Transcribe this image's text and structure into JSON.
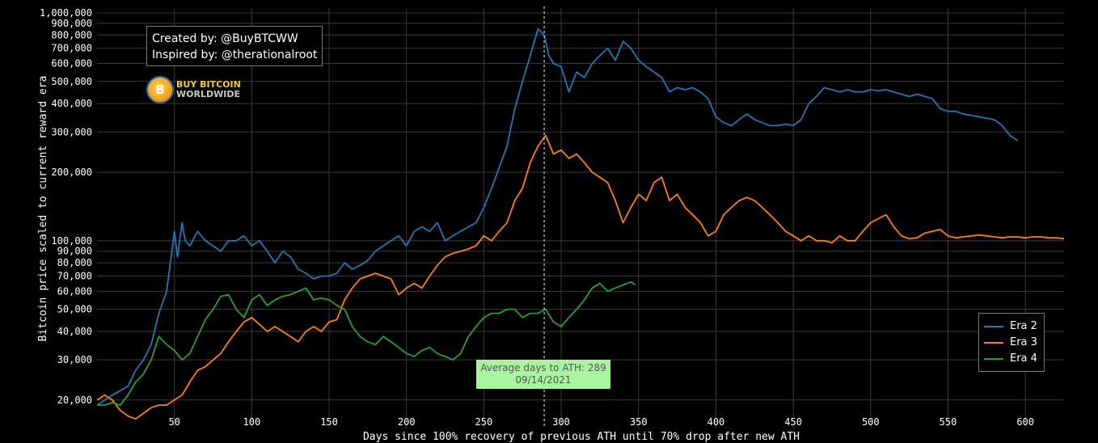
{
  "credits": {
    "created_by": "Created by: @BuyBTCWW",
    "inspired_by": "Inspired by: @therationalroot"
  },
  "logo": {
    "line1": "BUY BITCOIN",
    "line2": "WORLDWIDE",
    "symbol": "B"
  },
  "annotation": {
    "line1": "Average days to ATH: 289",
    "line2": "09/14/2021",
    "x": 289
  },
  "chart_data": {
    "type": "line",
    "title": "",
    "xlabel": "Days since 100% recovery of previous ATH until 70% drop after new ATH",
    "ylabel": "Bitcoin price scaled to current reward era",
    "xscale": "linear",
    "yscale": "log",
    "xlim": [
      0,
      625
    ],
    "ylim": [
      15000,
      1050000
    ],
    "grid": true,
    "legend_position": "bottom-right",
    "x_ticks": [
      50,
      100,
      150,
      200,
      250,
      300,
      350,
      400,
      450,
      500,
      550,
      600
    ],
    "x_tick_labels": [
      "50",
      "100",
      "150",
      "200",
      "250",
      "300",
      "350",
      "400",
      "450",
      "500",
      "550",
      "600"
    ],
    "y_ticks": [
      20000,
      30000,
      40000,
      50000,
      60000,
      70000,
      80000,
      90000,
      100000,
      200000,
      300000,
      400000,
      500000,
      600000,
      700000,
      800000,
      900000,
      1000000
    ],
    "y_tick_labels": [
      "20,000",
      "30,000",
      "40,000",
      "50,000",
      "60,000",
      "70,000",
      "80,000",
      "90,000",
      "100,000",
      "200,000",
      "300,000",
      "400,000",
      "500,000",
      "600,000",
      "700,000",
      "800,000",
      "900,000",
      "1,000,000"
    ],
    "series": [
      {
        "name": "Era 2",
        "color": "#1f77b4",
        "x": [
          0,
          10,
          20,
          25,
          30,
          35,
          40,
          45,
          50,
          52,
          55,
          57,
          60,
          65,
          70,
          75,
          80,
          85,
          90,
          95,
          100,
          105,
          110,
          115,
          120,
          125,
          130,
          135,
          140,
          145,
          150,
          155,
          160,
          165,
          170,
          175,
          180,
          185,
          190,
          195,
          200,
          205,
          210,
          215,
          220,
          225,
          230,
          235,
          240,
          245,
          250,
          255,
          260,
          265,
          270,
          275,
          280,
          285,
          289,
          292,
          295,
          300,
          305,
          310,
          315,
          320,
          325,
          330,
          335,
          340,
          345,
          350,
          355,
          360,
          365,
          370,
          375,
          380,
          385,
          390,
          395,
          400,
          405,
          410,
          415,
          420,
          425,
          430,
          435,
          440,
          445,
          450,
          455,
          460,
          465,
          470,
          475,
          480,
          485,
          490,
          495,
          500,
          505,
          510,
          515,
          520,
          525,
          530,
          535,
          540,
          545,
          550,
          555,
          560,
          565,
          570,
          575,
          580,
          585,
          590,
          595
        ],
        "y": [
          19000,
          21000,
          23000,
          27000,
          30000,
          35000,
          48000,
          60000,
          110000,
          85000,
          120000,
          100000,
          95000,
          110000,
          100000,
          95000,
          90000,
          100000,
          100000,
          105000,
          95000,
          100000,
          90000,
          80000,
          90000,
          85000,
          75000,
          72000,
          68000,
          70000,
          70000,
          72000,
          80000,
          75000,
          78000,
          82000,
          90000,
          95000,
          100000,
          105000,
          95000,
          110000,
          115000,
          110000,
          120000,
          100000,
          105000,
          110000,
          115000,
          120000,
          140000,
          170000,
          210000,
          260000,
          380000,
          500000,
          650000,
          850000,
          800000,
          650000,
          600000,
          580000,
          450000,
          550000,
          520000,
          600000,
          650000,
          700000,
          620000,
          750000,
          700000,
          620000,
          580000,
          550000,
          520000,
          450000,
          470000,
          460000,
          470000,
          450000,
          420000,
          350000,
          330000,
          320000,
          340000,
          360000,
          340000,
          330000,
          320000,
          320000,
          325000,
          320000,
          340000,
          400000,
          430000,
          470000,
          460000,
          450000,
          460000,
          450000,
          450000,
          460000,
          455000,
          460000,
          450000,
          440000,
          430000,
          440000,
          430000,
          420000,
          380000,
          370000,
          370000,
          360000,
          355000,
          350000,
          345000,
          340000,
          320000,
          290000,
          275000
        ]
      },
      {
        "name": "Era 3",
        "color": "#ff7f0e",
        "x": [
          0,
          5,
          10,
          15,
          20,
          25,
          30,
          35,
          40,
          45,
          50,
          55,
          60,
          65,
          70,
          75,
          80,
          85,
          90,
          95,
          100,
          105,
          110,
          115,
          120,
          125,
          130,
          135,
          140,
          145,
          150,
          155,
          160,
          165,
          170,
          175,
          180,
          185,
          190,
          195,
          200,
          205,
          210,
          215,
          220,
          225,
          230,
          235,
          240,
          245,
          250,
          255,
          260,
          265,
          270,
          275,
          280,
          285,
          290,
          295,
          300,
          305,
          310,
          315,
          320,
          325,
          330,
          335,
          340,
          345,
          350,
          355,
          360,
          365,
          370,
          375,
          380,
          385,
          390,
          395,
          400,
          405,
          410,
          415,
          420,
          425,
          430,
          435,
          440,
          445,
          450,
          455,
          460,
          465,
          470,
          475,
          480,
          485,
          490,
          495,
          500,
          505,
          510,
          515,
          520,
          525,
          530,
          535,
          540,
          545,
          550,
          555,
          560,
          565,
          570,
          575,
          580,
          585,
          590,
          595,
          600,
          605,
          610,
          615,
          620,
          625
        ],
        "y": [
          20000,
          21000,
          20000,
          18000,
          17000,
          16500,
          17500,
          18500,
          19000,
          19000,
          20000,
          21000,
          24000,
          27000,
          28000,
          30000,
          32000,
          36000,
          40000,
          44000,
          46000,
          43000,
          40000,
          42000,
          40000,
          38000,
          36000,
          40000,
          42000,
          40000,
          44000,
          45000,
          55000,
          62000,
          68000,
          70000,
          72000,
          70000,
          68000,
          58000,
          62000,
          65000,
          62000,
          70000,
          78000,
          85000,
          88000,
          90000,
          92000,
          95000,
          105000,
          100000,
          110000,
          120000,
          150000,
          170000,
          220000,
          260000,
          290000,
          240000,
          250000,
          230000,
          240000,
          220000,
          200000,
          190000,
          180000,
          150000,
          120000,
          140000,
          160000,
          150000,
          180000,
          190000,
          150000,
          160000,
          140000,
          130000,
          120000,
          105000,
          110000,
          130000,
          140000,
          150000,
          155000,
          150000,
          140000,
          130000,
          120000,
          110000,
          105000,
          100000,
          105000,
          100000,
          100000,
          98000,
          105000,
          100000,
          100000,
          110000,
          120000,
          125000,
          130000,
          115000,
          105000,
          102000,
          103000,
          108000,
          110000,
          112000,
          105000,
          103000,
          104000,
          105000,
          106000,
          105000,
          104000,
          103000,
          104000,
          104000,
          103000,
          104000,
          104000,
          103000,
          103000,
          102000
        ]
      },
      {
        "name": "Era 4",
        "color": "#2ca02c",
        "x": [
          0,
          5,
          10,
          15,
          20,
          25,
          30,
          35,
          40,
          45,
          50,
          55,
          60,
          65,
          70,
          75,
          80,
          85,
          90,
          95,
          100,
          105,
          110,
          115,
          120,
          125,
          130,
          135,
          140,
          145,
          150,
          155,
          160,
          165,
          170,
          175,
          180,
          185,
          190,
          195,
          200,
          205,
          210,
          215,
          220,
          225,
          230,
          235,
          240,
          245,
          250,
          255,
          260,
          265,
          270,
          275,
          280,
          285,
          290,
          295,
          300,
          305,
          310,
          315,
          320,
          325,
          330,
          335,
          340,
          345,
          348
        ],
        "y": [
          19000,
          19000,
          19500,
          19000,
          21000,
          24000,
          26000,
          30000,
          38000,
          35000,
          33000,
          30000,
          32000,
          38000,
          45000,
          50000,
          57000,
          58000,
          50000,
          46000,
          55000,
          58000,
          52000,
          55000,
          57000,
          58000,
          60000,
          62000,
          55000,
          56000,
          55000,
          52000,
          50000,
          42000,
          38000,
          36000,
          35000,
          38000,
          36000,
          34000,
          32000,
          31000,
          33000,
          34000,
          32000,
          31000,
          30000,
          32000,
          38000,
          42000,
          46000,
          48000,
          48000,
          50000,
          50000,
          46000,
          48000,
          48000,
          50000,
          44000,
          42000,
          46000,
          50000,
          55000,
          62000,
          65000,
          60000,
          62000,
          64000,
          66000,
          64000
        ]
      }
    ]
  }
}
